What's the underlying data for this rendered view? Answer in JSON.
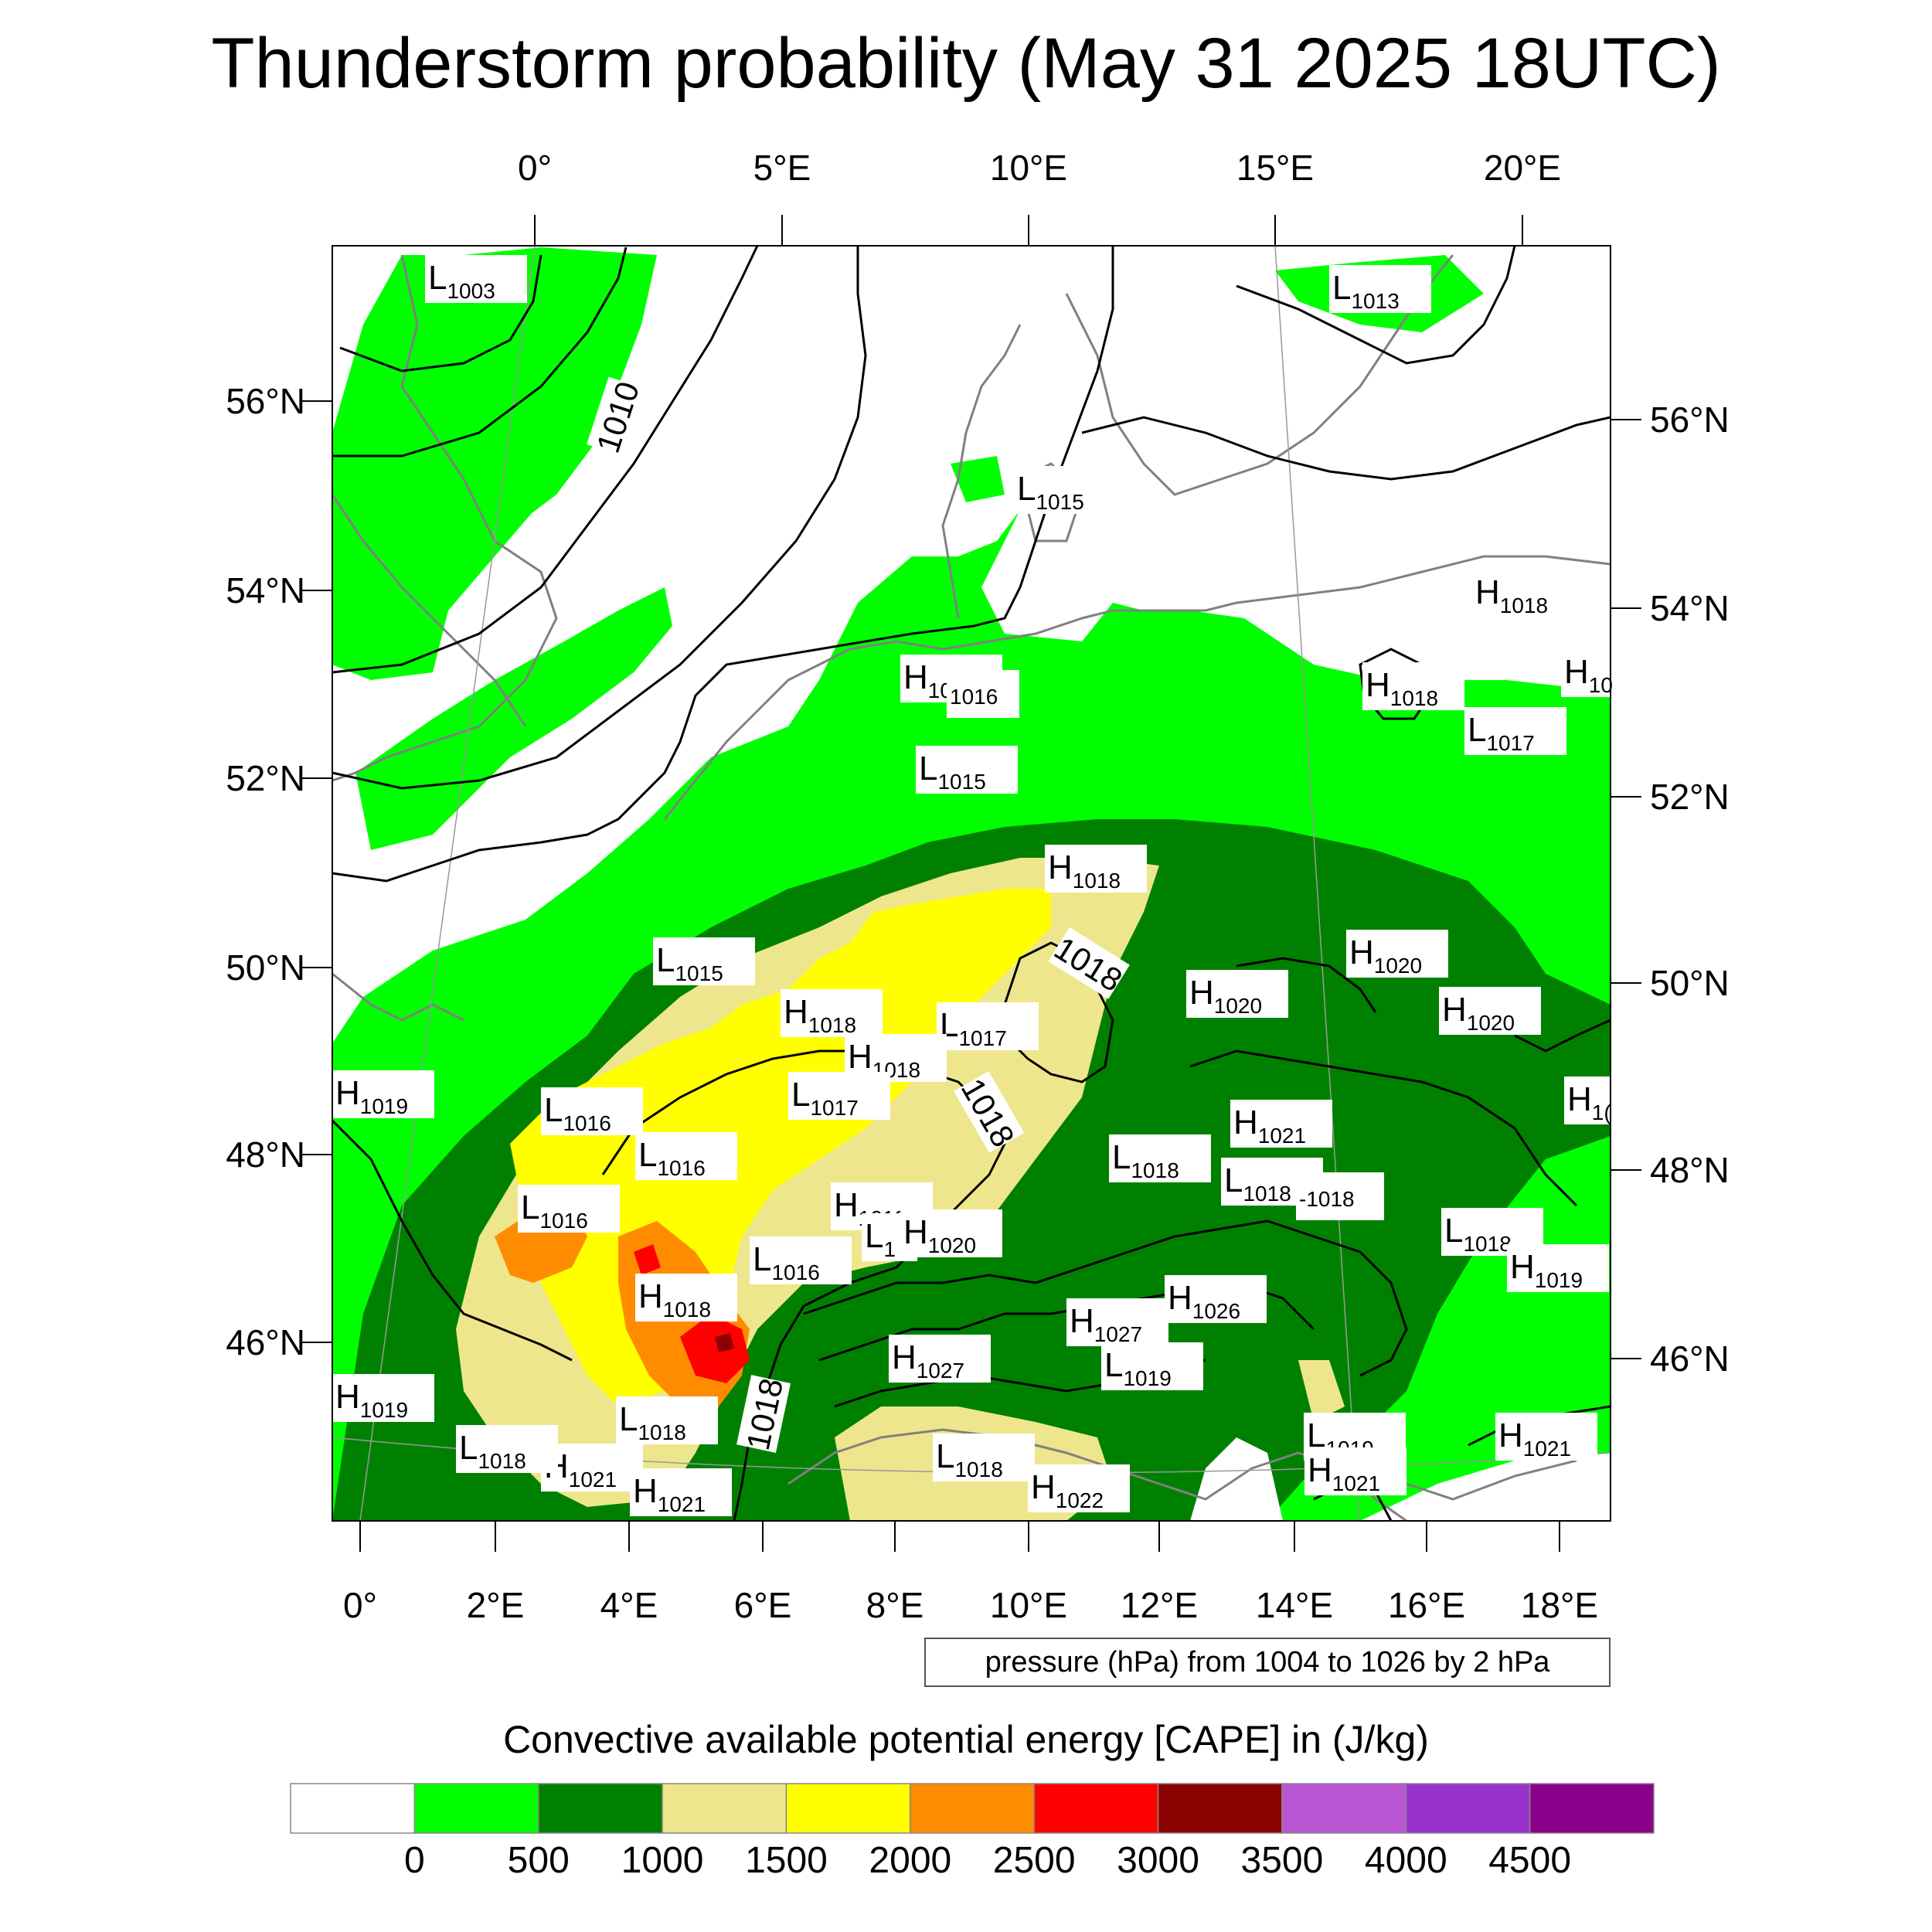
{
  "title": "Thunderstorm probability (May 31 2025 18UTC)",
  "top_lon_labels": [
    "0°",
    "5°E",
    "10°E",
    "15°E",
    "20°E"
  ],
  "bottom_lon_labels": [
    "0°",
    "2°E",
    "4°E",
    "6°E",
    "8°E",
    "10°E",
    "12°E",
    "14°E",
    "16°E",
    "18°E"
  ],
  "left_lat_labels": [
    "56°N",
    "54°N",
    "52°N",
    "50°N",
    "48°N",
    "46°N"
  ],
  "right_lat_labels": [
    "56°N",
    "54°N",
    "52°N",
    "50°N",
    "48°N",
    "46°N"
  ],
  "pressure_note": "pressure (hPa) from 1004 to 1026 by 2 hPa",
  "colorbar": {
    "title": "Convective available potential energy [CAPE] in (J/kg)",
    "colors": [
      "#ffffff",
      "#00ff00",
      "#008000",
      "#eee68c",
      "#ffff00",
      "#ff8c00",
      "#ff0000",
      "#8b0000",
      "#ba55d3",
      "#9932cc",
      "#8b008b"
    ],
    "labels": [
      "0",
      "500",
      "1000",
      "1500",
      "2000",
      "2500",
      "3000",
      "3500",
      "4000",
      "4500"
    ]
  },
  "isobar_labels": [
    "1010",
    "1018",
    "1018",
    "1018"
  ],
  "pressure_centers": [
    {
      "type": "L",
      "value": "1003"
    },
    {
      "type": "L",
      "value": "1013"
    },
    {
      "type": "L",
      "value": "1015"
    },
    {
      "type": "H",
      "value": "1018"
    },
    {
      "type": "H",
      "value": "1016"
    },
    {
      "type": "",
      "value": "1016"
    },
    {
      "type": "H",
      "value": "1018"
    },
    {
      "type": "H",
      "value": "10"
    },
    {
      "type": "L",
      "value": "1017"
    },
    {
      "type": "L",
      "value": "1015"
    },
    {
      "type": "H",
      "value": "1018"
    },
    {
      "type": "L",
      "value": "1015"
    },
    {
      "type": "H",
      "value": "1020"
    },
    {
      "type": "H",
      "value": "1020"
    },
    {
      "type": "H",
      "value": "1020"
    },
    {
      "type": "H",
      "value": "1018"
    },
    {
      "type": "L",
      "value": "1017"
    },
    {
      "type": "H",
      "value": "1018"
    },
    {
      "type": "L",
      "value": "1017"
    },
    {
      "type": "H",
      "value": "1019"
    },
    {
      "type": "L",
      "value": "1016"
    },
    {
      "type": "H",
      "value": "1021"
    },
    {
      "type": "H",
      "value": "1("
    },
    {
      "type": "L",
      "value": "1016"
    },
    {
      "type": "L",
      "value": "1018"
    },
    {
      "type": "L",
      "value": "1018"
    },
    {
      "type": "",
      "value": "-1018"
    },
    {
      "type": "L",
      "value": "1016"
    },
    {
      "type": "H",
      "value": "1019"
    },
    {
      "type": "L",
      "value": "1"
    },
    {
      "type": "H",
      "value": "1020"
    },
    {
      "type": "L",
      "value": "1018"
    },
    {
      "type": "H",
      "value": "1019"
    },
    {
      "type": "L",
      "value": "1016"
    },
    {
      "type": "H",
      "value": "1026"
    },
    {
      "type": "H",
      "value": "1018"
    },
    {
      "type": "H",
      "value": "1027"
    },
    {
      "type": "H",
      "value": "1027"
    },
    {
      "type": "L",
      "value": "1019"
    },
    {
      "type": "H",
      "value": "1019"
    },
    {
      "type": "H",
      "value": "1021"
    },
    {
      "type": "L",
      "value": "1018"
    },
    {
      "type": "H",
      "value": "1021"
    },
    {
      "type": "H",
      "value": "1021"
    },
    {
      "type": "L",
      "value": "1018"
    },
    {
      "type": "L",
      "value": "1018"
    },
    {
      "type": "H",
      "value": "1022"
    },
    {
      "type": "L",
      "value": "1019"
    },
    {
      "type": "H",
      "value": "1021"
    }
  ]
}
